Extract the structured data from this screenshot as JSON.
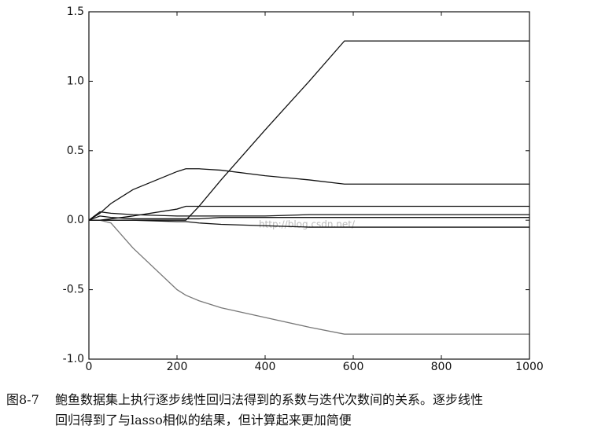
{
  "chart_data": {
    "type": "line",
    "watermark": "http://blog.csdn.net/",
    "x": [
      0,
      25,
      50,
      100,
      200,
      220,
      250,
      300,
      400,
      500,
      580,
      600,
      800,
      1000
    ],
    "series": [
      {
        "color": "#111111",
        "values": [
          0,
          0,
          0,
          0,
          0,
          0,
          0.1,
          0.29,
          0.65,
          1.0,
          1.29,
          1.29,
          1.29,
          1.29
        ]
      },
      {
        "color": "#111111",
        "values": [
          0,
          0.05,
          0.12,
          0.22,
          0.35,
          0.37,
          0.37,
          0.36,
          0.32,
          0.29,
          0.26,
          0.26,
          0.26,
          0.26
        ]
      },
      {
        "color": "#777777",
        "values": [
          0,
          0,
          -0.02,
          -0.2,
          -0.5,
          -0.54,
          -0.58,
          -0.63,
          -0.7,
          -0.77,
          -0.82,
          -0.82,
          -0.82,
          -0.82
        ]
      },
      {
        "color": "#111111",
        "values": [
          0,
          0,
          0.01,
          0.03,
          0.08,
          0.1,
          0.1,
          0.1,
          0.1,
          0.1,
          0.1,
          0.1,
          0.1,
          0.1
        ]
      },
      {
        "color": "#111111",
        "values": [
          0,
          0.06,
          0.05,
          0.04,
          0.03,
          0.03,
          0.03,
          0.03,
          0.03,
          0.04,
          0.04,
          0.04,
          0.04,
          0.04
        ]
      },
      {
        "color": "#111111",
        "values": [
          0,
          0,
          0,
          0,
          -0.01,
          -0.01,
          -0.02,
          -0.03,
          -0.04,
          -0.05,
          -0.05,
          -0.05,
          -0.05,
          -0.05
        ]
      },
      {
        "color": "#111111",
        "values": [
          0,
          0.03,
          0.02,
          0.01,
          0.01,
          0.01,
          0.01,
          0.02,
          0.02,
          0.02,
          0.02,
          0.02,
          0.02,
          0.02
        ]
      }
    ],
    "xlim": [
      0,
      1000
    ],
    "xticks": [
      0,
      200,
      400,
      600,
      800,
      1000
    ],
    "ylim": [
      -1,
      1.5
    ],
    "yticks": [
      {
        "value": -1,
        "label": "-1.0"
      },
      -0.5,
      {
        "value": 0,
        "label": "0.0"
      },
      0.5,
      {
        "value": 1,
        "label": "1.0"
      },
      1.5
    ]
  },
  "caption": {
    "label": "图8-7",
    "lines": [
      "鲍鱼数据集上执行逐步线性回归法得到的系数与迭代次数间的关系。逐步线性",
      "回归得到了与lasso相似的结果，但计算起来更加简便"
    ]
  }
}
